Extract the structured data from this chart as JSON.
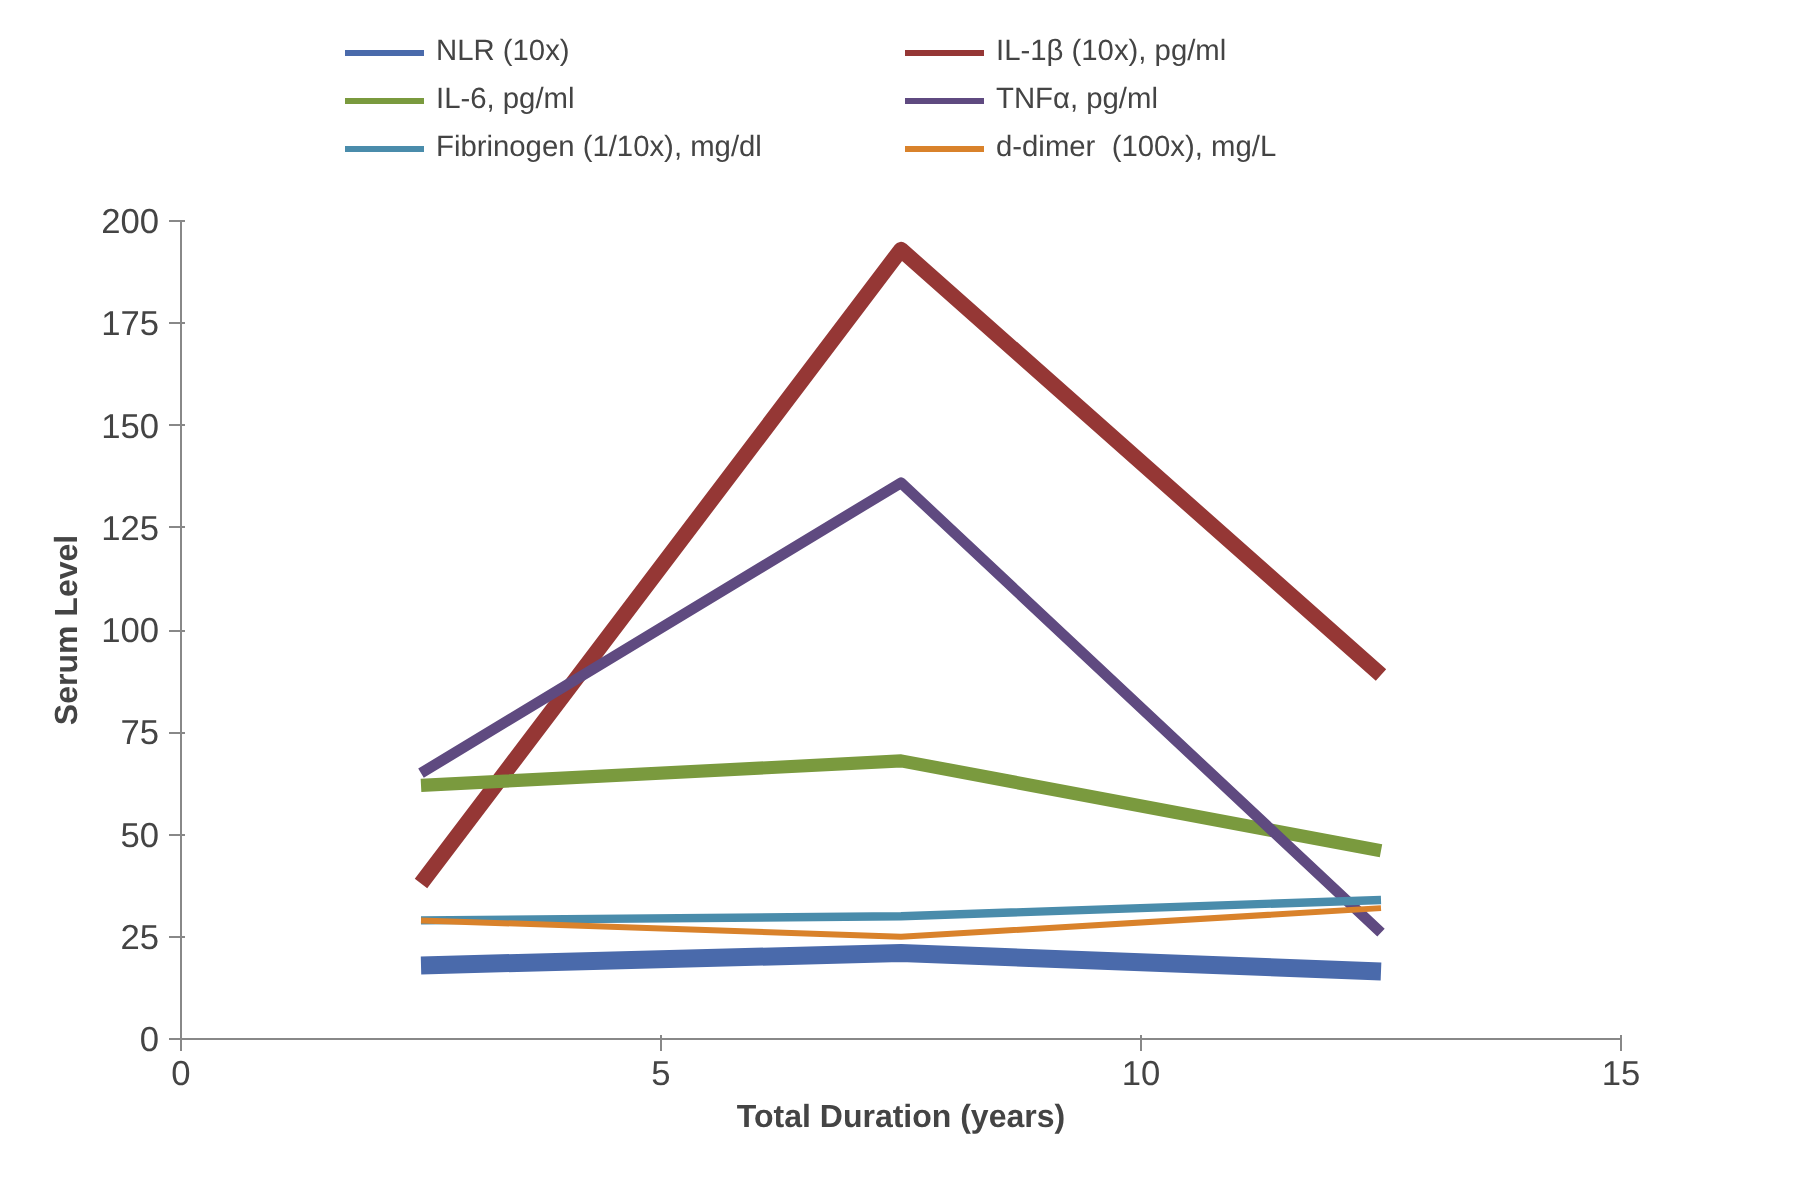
{
  "chart_data": {
    "type": "line",
    "xlabel": "Total Duration (years)",
    "ylabel": "Serum Level",
    "x": [
      2.5,
      7.5,
      12.5
    ],
    "xlim": [
      0,
      15
    ],
    "xticks": [
      0,
      5,
      10,
      15
    ],
    "ylim": [
      0,
      200
    ],
    "yticks": [
      0,
      25,
      50,
      75,
      100,
      125,
      150,
      175,
      200
    ],
    "grid": false,
    "legend": "top",
    "marker": "none",
    "line_style": "solid",
    "series": [
      {
        "name": "NLR (10x)",
        "color": "#4a6aab",
        "values": [
          18,
          21,
          16.5
        ]
      },
      {
        "name": "IL-1β (10x), pg/ml",
        "color": "#953735",
        "values": [
          38,
          193,
          89
        ]
      },
      {
        "name": "IL-6, pg/ml",
        "color": "#7a9a3e",
        "values": [
          62,
          68,
          46
        ]
      },
      {
        "name": "TNFα, pg/ml",
        "color": "#5f4a80",
        "values": [
          65,
          136,
          26
        ]
      },
      {
        "name": "Fibrinogen (1/10x), mg/dl",
        "color": "#4a8cab",
        "values": [
          29,
          30,
          34
        ]
      },
      {
        "name": "d-dimer  (100x), mg/L",
        "color": "#d9822b",
        "values": [
          29,
          25,
          32
        ]
      }
    ]
  }
}
